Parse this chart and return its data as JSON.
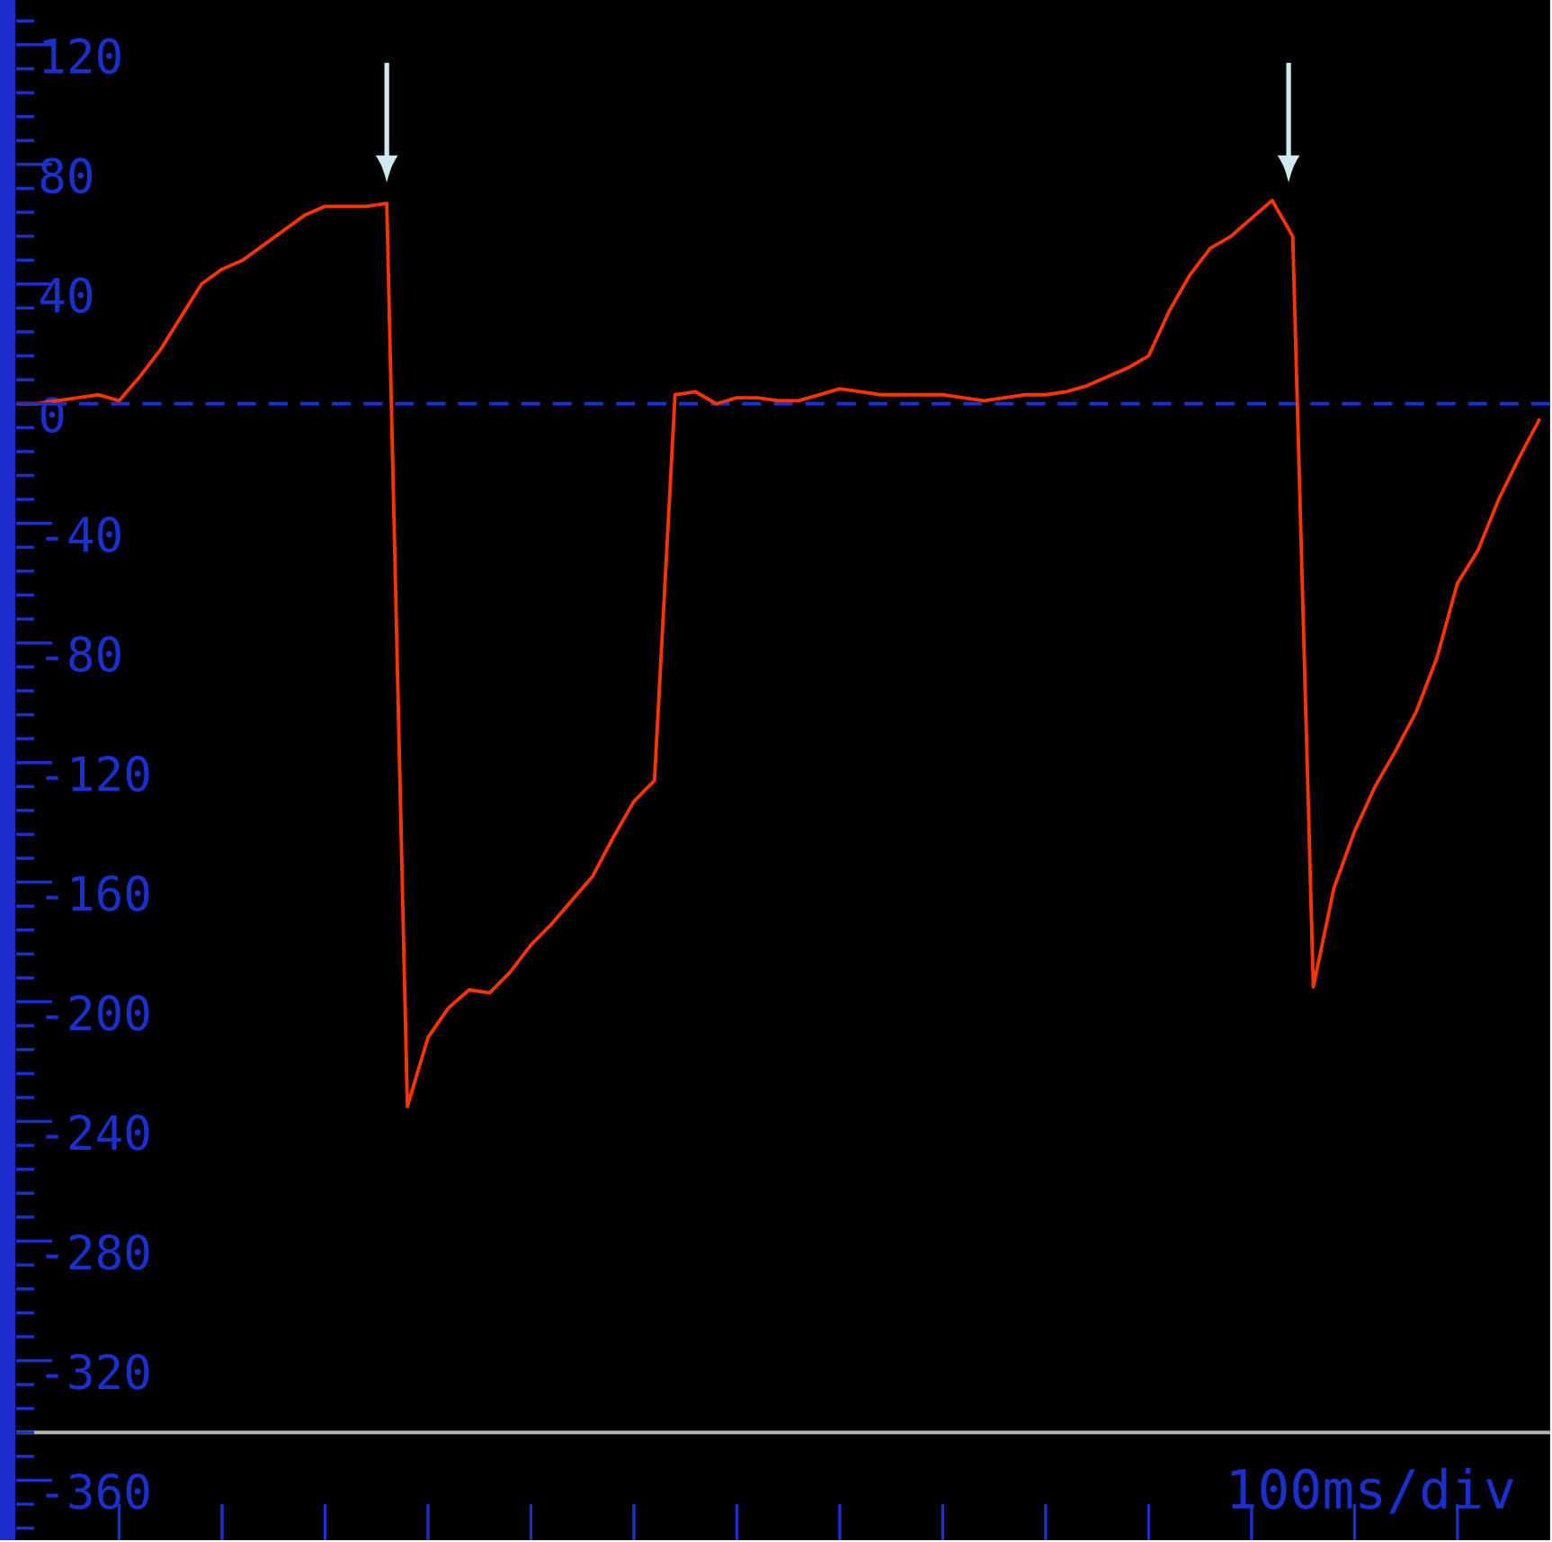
{
  "chart_data": {
    "type": "line",
    "marker": "none",
    "line_style": "solid",
    "categories": [
      null,
      null,
      null,
      null,
      null,
      null,
      null,
      null,
      null,
      null,
      null,
      null,
      null,
      null,
      null,
      null,
      null,
      null,
      null,
      null,
      null,
      null,
      null,
      null,
      null,
      null,
      null,
      null,
      null,
      null,
      null,
      null,
      null,
      null,
      null,
      null,
      null,
      null,
      null,
      null,
      null,
      null,
      null,
      null,
      null,
      null,
      null,
      null,
      null,
      null,
      null,
      null,
      null,
      null,
      null,
      null,
      null,
      null,
      null,
      null,
      null,
      null,
      null,
      null,
      null,
      null,
      null,
      null,
      null,
      null,
      null,
      null,
      null,
      null,
      null
    ],
    "series": [
      {
        "color": "#ff3300",
        "values": [
          0,
          0,
          1,
          2,
          3,
          1,
          9,
          18,
          29,
          40,
          45,
          48,
          53,
          58,
          63,
          66,
          66,
          66,
          67,
          -235,
          -212,
          -202,
          -196,
          -197,
          -190,
          -181,
          -174,
          -166,
          -158,
          -145,
          -133,
          -126,
          3,
          4,
          0,
          2,
          2,
          1,
          1,
          3,
          5,
          4,
          3,
          3,
          3,
          3,
          2,
          1,
          2,
          3,
          3,
          4,
          6,
          9,
          12,
          16,
          31,
          43,
          52,
          56,
          62,
          68,
          56,
          -195,
          -162,
          -143,
          -128,
          -116,
          -103,
          -85,
          -60,
          -49,
          -32,
          -18,
          -5
        ]
      }
    ],
    "ylim": [
      -380,
      135
    ],
    "yticks": [
      120,
      80,
      40,
      0,
      -40,
      -80,
      -120,
      -160,
      -200,
      -240,
      -280,
      -320,
      -360
    ],
    "tick_labels": "y",
    "ref_lines": [
      {
        "axis": "y",
        "value": 0,
        "color": "#1a2fcc",
        "line_style": "dashed"
      },
      {
        "axis": "y",
        "value": -344,
        "color": "#b4b4b4",
        "line_style": "solid"
      }
    ],
    "annotations": [
      "100ms/div"
    ]
  }
}
